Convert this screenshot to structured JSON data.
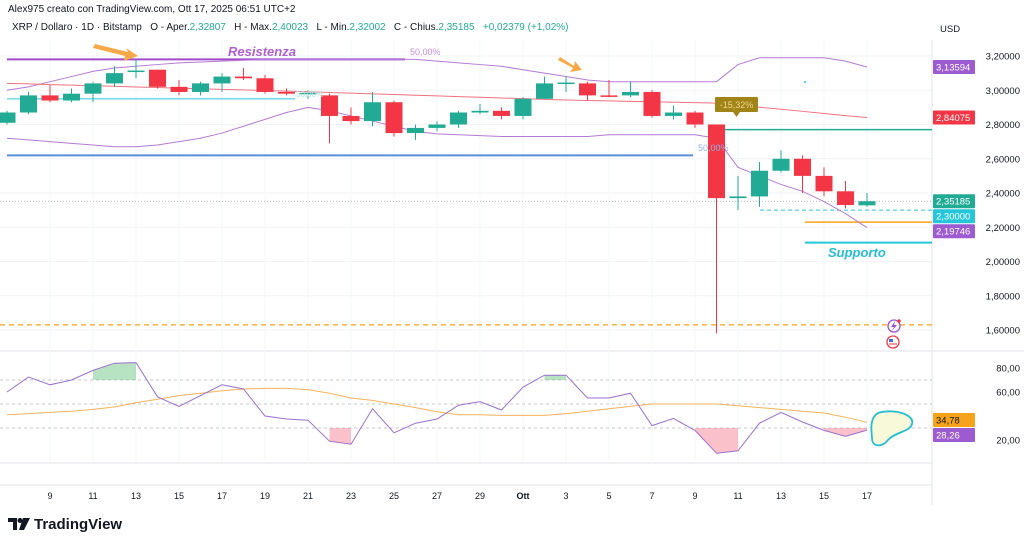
{
  "header": {
    "credit": "Alex975 creato con TradingView.com, Ott 17, 2025 06:51 UTC+2",
    "symbol": "XRP / Dollaro · 1D · Bitstamp",
    "open_label": "O - Aper.",
    "open": "2,32807",
    "high_label": "H - Max.",
    "high": "2,40023",
    "low_label": "L - Min.",
    "low": "2,32002",
    "close_label": "C - Chius.",
    "close": "2,35185",
    "change": "+0,02379 (+1,02%)"
  },
  "annotations": {
    "resistance": "Resistenza",
    "support": "Supporto",
    "fib1": "50,00%",
    "fib2": "50,00%",
    "fib3": "50,00%",
    "drop_tag": "-15,32%"
  },
  "colors": {
    "up": "#22ab94",
    "down": "#f23645",
    "band": "#b57ad6",
    "basis": "#f0727f",
    "rsi": "#9b6fd0",
    "rsi_ma": "#f6b35a",
    "resistance": "#a24bc8",
    "support": "#26c6da",
    "blue_line": "#5b8fd8",
    "orange": "#f7a21b"
  },
  "branding": {
    "logo_text": "TradingView"
  },
  "chart_data": [
    {
      "type": "candlestick",
      "currency": "USD",
      "ylim": [
        1.5,
        3.3
      ],
      "y_ticks": [
        "3,20000",
        "3,00000",
        "2,80000",
        "2,60000",
        "2,40000",
        "2,20000",
        "2,00000",
        "1,80000",
        "1,60000"
      ],
      "x_tick_labels": [
        "9",
        "11",
        "13",
        "15",
        "17",
        "19",
        "21",
        "23",
        "25",
        "27",
        "29",
        "Ott",
        "3",
        "5",
        "7",
        "9",
        "11",
        "13",
        "15",
        "17"
      ],
      "dates": [
        "2025-09-07",
        "2025-09-08",
        "2025-09-09",
        "2025-09-10",
        "2025-09-11",
        "2025-09-12",
        "2025-09-13",
        "2025-09-14",
        "2025-09-15",
        "2025-09-16",
        "2025-09-17",
        "2025-09-18",
        "2025-09-19",
        "2025-09-20",
        "2025-09-21",
        "2025-09-22",
        "2025-09-23",
        "2025-09-24",
        "2025-09-25",
        "2025-09-26",
        "2025-09-27",
        "2025-09-28",
        "2025-09-29",
        "2025-09-30",
        "2025-10-01",
        "2025-10-02",
        "2025-10-03",
        "2025-10-04",
        "2025-10-05",
        "2025-10-06",
        "2025-10-07",
        "2025-10-08",
        "2025-10-09",
        "2025-10-10",
        "2025-10-11",
        "2025-10-12",
        "2025-10-13",
        "2025-10-14",
        "2025-10-15",
        "2025-10-16",
        "2025-10-17"
      ],
      "ohlc": [
        [
          2.81,
          2.88,
          2.8,
          2.87
        ],
        [
          2.87,
          2.99,
          2.86,
          2.97
        ],
        [
          2.97,
          3.03,
          2.93,
          2.94
        ],
        [
          2.94,
          3.01,
          2.93,
          2.98
        ],
        [
          2.98,
          3.05,
          2.93,
          3.04
        ],
        [
          3.04,
          3.14,
          3.02,
          3.1
        ],
        [
          3.107,
          3.18,
          3.07,
          3.115
        ],
        [
          3.12,
          3.12,
          3.01,
          3.02
        ],
        [
          3.02,
          3.06,
          2.97,
          2.99
        ],
        [
          2.99,
          3.05,
          2.97,
          3.04
        ],
        [
          3.04,
          3.1,
          2.99,
          3.08
        ],
        [
          3.08,
          3.13,
          3.06,
          3.07
        ],
        [
          3.07,
          3.09,
          2.98,
          2.99
        ],
        [
          2.99,
          3.01,
          2.97,
          2.98
        ],
        [
          2.98,
          3.0,
          2.95,
          2.985
        ],
        [
          2.97,
          2.98,
          2.69,
          2.85
        ],
        [
          2.85,
          2.9,
          2.8,
          2.82
        ],
        [
          2.82,
          2.99,
          2.79,
          2.93
        ],
        [
          2.93,
          2.94,
          2.73,
          2.75
        ],
        [
          2.75,
          2.8,
          2.71,
          2.78
        ],
        [
          2.78,
          2.82,
          2.76,
          2.8
        ],
        [
          2.8,
          2.88,
          2.78,
          2.87
        ],
        [
          2.87,
          2.92,
          2.86,
          2.88
        ],
        [
          2.88,
          2.9,
          2.83,
          2.85
        ],
        [
          2.85,
          2.96,
          2.83,
          2.95
        ],
        [
          2.95,
          3.08,
          2.95,
          3.04
        ],
        [
          3.04,
          3.08,
          2.99,
          3.045
        ],
        [
          3.04,
          3.05,
          2.94,
          2.97
        ],
        [
          2.97,
          3.06,
          2.96,
          2.968
        ],
        [
          2.97,
          3.05,
          2.96,
          2.99
        ],
        [
          2.99,
          3.0,
          2.84,
          2.85
        ],
        [
          2.85,
          2.91,
          2.83,
          2.87
        ],
        [
          2.87,
          2.88,
          2.78,
          2.8
        ],
        [
          2.8,
          2.8,
          1.58,
          2.37
        ],
        [
          2.37,
          2.5,
          2.3,
          2.38
        ],
        [
          2.38,
          2.58,
          2.32,
          2.53
        ],
        [
          2.53,
          2.65,
          2.52,
          2.6
        ],
        [
          2.6,
          2.62,
          2.4,
          2.5
        ],
        [
          2.5,
          2.55,
          2.38,
          2.41
        ],
        [
          2.41,
          2.47,
          2.31,
          2.33
        ],
        [
          2.32807,
          2.40023,
          2.32002,
          2.35185
        ]
      ],
      "bollinger_upper": [
        3.0,
        3.02,
        3.05,
        3.08,
        3.11,
        3.13,
        3.14,
        3.15,
        3.16,
        3.165,
        3.17,
        3.175,
        3.18,
        3.18,
        3.18,
        3.18,
        3.18,
        3.18,
        3.18,
        3.18,
        3.17,
        3.16,
        3.15,
        3.14,
        3.12,
        3.1,
        3.08,
        3.06,
        3.05,
        3.05,
        3.05,
        3.05,
        3.05,
        3.05,
        3.15,
        3.19,
        3.19,
        3.19,
        3.19,
        3.17,
        3.13594
      ],
      "bollinger_basis": [
        3.04,
        3.037,
        3.033,
        3.03,
        3.026,
        3.023,
        3.019,
        3.016,
        3.012,
        3.009,
        3.005,
        3.002,
        2.998,
        2.995,
        2.991,
        2.987,
        2.983,
        2.979,
        2.975,
        2.971,
        2.967,
        2.963,
        2.959,
        2.955,
        2.951,
        2.947,
        2.943,
        2.94,
        2.938,
        2.935,
        2.933,
        2.93,
        2.928,
        2.925,
        2.913,
        2.901,
        2.889,
        2.877,
        2.864,
        2.852,
        2.84075
      ],
      "bollinger_lower": [
        2.72,
        2.71,
        2.7,
        2.69,
        2.68,
        2.67,
        2.67,
        2.68,
        2.7,
        2.72,
        2.75,
        2.79,
        2.83,
        2.87,
        2.9,
        2.88,
        2.85,
        2.82,
        2.79,
        2.76,
        2.745,
        2.74,
        2.735,
        2.73,
        2.73,
        2.73,
        2.73,
        2.73,
        2.74,
        2.74,
        2.74,
        2.74,
        2.74,
        2.72,
        2.55,
        2.5,
        2.45,
        2.41,
        2.35,
        2.28,
        2.19746
      ],
      "levels": {
        "resistance": 3.18,
        "teal_upper": 2.95,
        "blue": 2.62,
        "teal_right": 2.77,
        "support_dashed": 2.3,
        "orange": 2.23,
        "support": 2.11,
        "orange_dashed": 1.63,
        "last_price": 2.35185
      },
      "price_tags": [
        {
          "text": "3,13594",
          "value": 3.13594,
          "color": "#9c5bd1"
        },
        {
          "text": "2,84075",
          "value": 2.84075,
          "color": "#f23645"
        },
        {
          "text": "2,35185",
          "value": 2.35185,
          "color": "#22ab94"
        },
        {
          "text": "2,30000",
          "value": 2.3,
          "color": "#26c6da"
        },
        {
          "text": "2,19746",
          "value": 2.19746,
          "color": "#9c5bd1"
        }
      ]
    },
    {
      "type": "line",
      "ylim": [
        0,
        100
      ],
      "y_ticks": [
        "80,00",
        "60,00",
        "20,00"
      ],
      "bands": [
        70,
        50,
        30
      ],
      "rsi": [
        60,
        72.5,
        66,
        70,
        78,
        84,
        84.5,
        56,
        48,
        57,
        66,
        62.5,
        40,
        37.5,
        36.5,
        19,
        16.5,
        46,
        26,
        34,
        37.5,
        49,
        52,
        45,
        64,
        74,
        74,
        55,
        55,
        59,
        32,
        38,
        28,
        9,
        11,
        34,
        43,
        35,
        28,
        23,
        28.26
      ],
      "rsi_ma": [
        41,
        42,
        43,
        44,
        45.5,
        47.5,
        51,
        54,
        57,
        59,
        61,
        62.5,
        63,
        63,
        62,
        59,
        55,
        53,
        50,
        47,
        43.5,
        41,
        41,
        40.5,
        40.5,
        40.5,
        42,
        44,
        46,
        48,
        50,
        50,
        50,
        50,
        48.5,
        47,
        45.5,
        44,
        42.5,
        39,
        34.78
      ],
      "value_tags": [
        {
          "text": "34,78",
          "color": "#f7a21b"
        },
        {
          "text": "28,26",
          "color": "#9c5bd1"
        }
      ]
    }
  ]
}
